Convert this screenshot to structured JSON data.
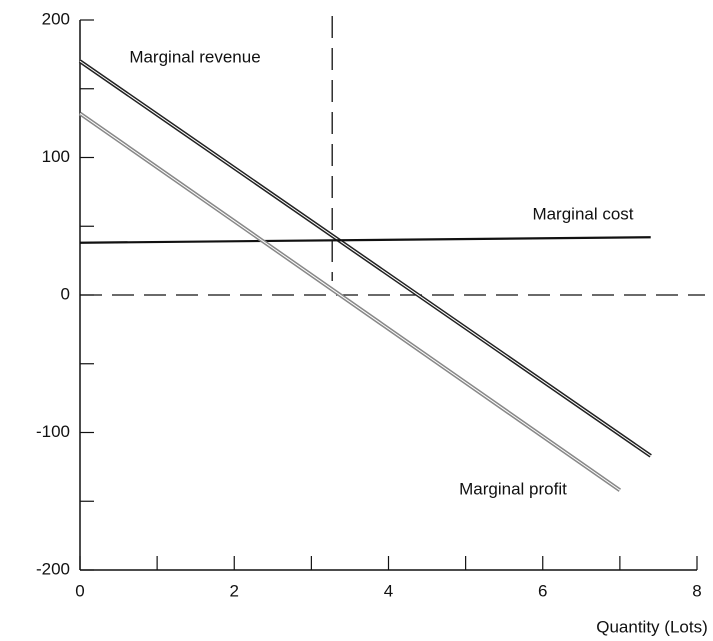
{
  "chart_data": {
    "type": "line",
    "xlabel": "Quantity (Lots)",
    "xlim": [
      0,
      8
    ],
    "ylim": [
      -200,
      200
    ],
    "xticks": [
      0,
      2,
      4,
      6,
      8
    ],
    "yticks": [
      -200,
      -100,
      0,
      100,
      200
    ],
    "xminorticks": [
      1,
      3,
      5,
      7
    ],
    "yminorticks": [
      -150,
      -50,
      50,
      150
    ],
    "hline": 0,
    "vline": 3.27,
    "series": [
      {
        "name": "Marginal revenue",
        "color": "#222222",
        "x": [
          0,
          7.4
        ],
        "values": [
          170,
          -117
        ]
      },
      {
        "name": "Marginal cost",
        "color": "#111111",
        "x": [
          0,
          7.4
        ],
        "values": [
          38,
          42
        ]
      },
      {
        "name": "Marginal profit",
        "color": "#888888",
        "x": [
          0,
          7.0
        ],
        "values": [
          132,
          -142
        ]
      }
    ]
  }
}
